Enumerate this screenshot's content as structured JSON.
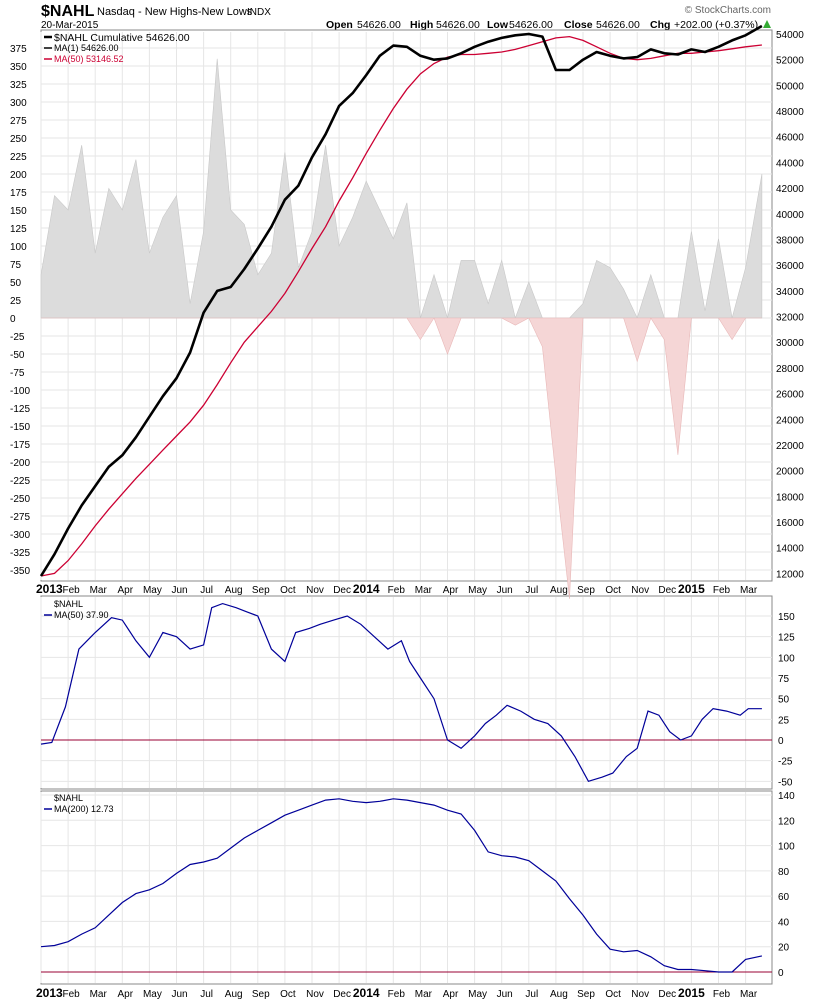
{
  "header": {
    "symbol": "$NAHL",
    "name": "Nasdaq - New Highs-New Lows",
    "exchange": "INDX",
    "date": "20-Mar-2015",
    "open_label": "Open",
    "open": "54626.00",
    "high_label": "High",
    "high": "54626.00",
    "low_label": "Low",
    "low": "54626.00",
    "close_label": "Close",
    "close": "54626.00",
    "chg_label": "Chg",
    "chg": "+202.00 (+0.37%)",
    "watermark": "© StockCharts.com"
  },
  "legend": {
    "main_line1": "$NAHL Cumulative 54626.00",
    "main_line2": "MA(1) 54626.00",
    "main_line3": "MA(50) 53146.52",
    "p2_line1": "$NAHL",
    "p2_line2": "MA(50) 37.90",
    "p3_line1": "$NAHL",
    "p3_line2": "MA(200) 12.73"
  },
  "colors": {
    "cumulative": "#000000",
    "ma50_main": "#cc0033",
    "histogram_pos": "#dcdcdc",
    "histogram_neg": "#f5d6d6",
    "ma_lower": "#000099",
    "zero_line": "#990033",
    "grid": "#e6e6e6"
  },
  "chart_data": [
    {
      "type": "line",
      "title": "$NAHL Cumulative",
      "x_labels": [
        "2013",
        "Feb",
        "Mar",
        "Apr",
        "May",
        "Jun",
        "Jul",
        "Aug",
        "Sep",
        "Oct",
        "Nov",
        "Dec",
        "2014",
        "Feb",
        "Mar",
        "Apr",
        "May",
        "Jun",
        "Jul",
        "Aug",
        "Sep",
        "Oct",
        "Nov",
        "Dec",
        "2015",
        "Feb",
        "Mar"
      ],
      "left_axis": {
        "ylim": [
          -360,
          400
        ],
        "ticks": [
          375,
          350,
          325,
          300,
          275,
          250,
          225,
          200,
          175,
          150,
          125,
          100,
          75,
          50,
          25,
          0,
          -25,
          -50,
          -75,
          -100,
          -125,
          -150,
          -175,
          -200,
          -225,
          -250,
          -275,
          -300,
          -325,
          -350
        ]
      },
      "right_axis": {
        "ylim": [
          11500,
          55500
        ],
        "ticks": [
          54000,
          52000,
          50000,
          48000,
          46000,
          44000,
          42000,
          40000,
          38000,
          36000,
          34000,
          32000,
          30000,
          28000,
          26000,
          24000,
          22000,
          20000,
          18000,
          16000,
          14000,
          12000
        ]
      },
      "series": [
        {
          "name": "$NAHL Cumulative",
          "axis": "right",
          "x": [
            0,
            0.5,
            1,
            1.5,
            2,
            2.5,
            3,
            3.5,
            4,
            4.5,
            5,
            5.5,
            6,
            6.5,
            7,
            7.5,
            8,
            8.5,
            9,
            9.5,
            10,
            10.5,
            11,
            11.5,
            12,
            12.5,
            13,
            13.5,
            14,
            14.5,
            15,
            15.5,
            16,
            16.5,
            17,
            17.5,
            18,
            18.5,
            19,
            19.5,
            20,
            20.5,
            21,
            21.5,
            22,
            22.5,
            23,
            23.5,
            24,
            24.5,
            25,
            25.5,
            26,
            26.6
          ],
          "values": [
            11800,
            13500,
            15500,
            17300,
            18800,
            20300,
            21200,
            22600,
            24200,
            25800,
            27200,
            29200,
            32300,
            34000,
            34300,
            35700,
            37300,
            39000,
            41100,
            42200,
            44400,
            46200,
            48400,
            49400,
            50800,
            52300,
            53100,
            53000,
            52300,
            52000,
            52100,
            52500,
            53000,
            53400,
            53700,
            53900,
            54000,
            53800,
            51200,
            51200,
            52000,
            52600,
            52300,
            52100,
            52200,
            52800,
            52500,
            52400,
            52800,
            52600,
            53000,
            53500,
            53900,
            54626
          ]
        },
        {
          "name": "MA(50)",
          "axis": "right",
          "x": [
            0,
            0.5,
            1,
            1.5,
            2,
            2.5,
            3,
            3.5,
            4,
            4.5,
            5,
            5.5,
            6,
            6.5,
            7,
            7.5,
            8,
            8.5,
            9,
            9.5,
            10,
            10.5,
            11,
            11.5,
            12,
            12.5,
            13,
            13.5,
            14,
            14.5,
            15,
            15.5,
            16,
            16.5,
            17,
            17.5,
            18,
            18.5,
            19,
            19.5,
            20,
            20.5,
            21,
            21.5,
            22,
            22.5,
            23,
            23.5,
            24,
            24.5,
            25,
            25.5,
            26,
            26.6
          ],
          "values": [
            11800,
            12000,
            13000,
            14300,
            15700,
            17000,
            18200,
            19400,
            20500,
            21600,
            22700,
            23800,
            25100,
            26700,
            28400,
            30000,
            31200,
            32400,
            33800,
            35500,
            37300,
            39000,
            41000,
            42800,
            44700,
            46500,
            48200,
            49700,
            50900,
            51700,
            52200,
            52400,
            52400,
            52500,
            52600,
            52800,
            53100,
            53400,
            53700,
            53800,
            53500,
            53000,
            52500,
            52100,
            52000,
            52100,
            52300,
            52500,
            52500,
            52600,
            52700,
            52850,
            53000,
            53146.52
          ]
        },
        {
          "name": "$NAHL daily",
          "axis": "left",
          "type": "area",
          "x": [
            0,
            0.5,
            1,
            1.5,
            2,
            2.5,
            3,
            3.5,
            4,
            4.5,
            5,
            5.5,
            6,
            6.5,
            7,
            7.5,
            8,
            8.5,
            9,
            9.5,
            10,
            10.5,
            11,
            11.5,
            12,
            12.5,
            13,
            13.5,
            14,
            14.5,
            15,
            15.5,
            16,
            16.5,
            17,
            17.5,
            18,
            18.5,
            19,
            19.5,
            20,
            20.5,
            21,
            21.5,
            22,
            22.5,
            23,
            23.5,
            24,
            24.5,
            25,
            25.5,
            26,
            26.6
          ],
          "values": [
            60,
            170,
            150,
            240,
            90,
            180,
            150,
            220,
            90,
            140,
            170,
            20,
            120,
            360,
            150,
            130,
            60,
            90,
            230,
            70,
            120,
            240,
            100,
            140,
            190,
            150,
            110,
            160,
            -30,
            60,
            -50,
            80,
            80,
            20,
            80,
            -10,
            50,
            -40,
            -220,
            -390,
            20,
            80,
            70,
            40,
            -60,
            60,
            -30,
            -190,
            120,
            10,
            110,
            -30,
            70,
            200
          ]
        }
      ]
    },
    {
      "type": "line",
      "title": "$NAHL MA(50)",
      "x_labels": [
        "Feb",
        "Mar",
        "Apr",
        "May",
        "Jun",
        "Jul",
        "Aug",
        "Sep",
        "Oct",
        "Nov",
        "Dec",
        "2014",
        "Feb",
        "Mar",
        "Apr",
        "May",
        "Jun",
        "Jul",
        "Aug",
        "Sep",
        "Oct",
        "Nov",
        "Dec",
        "2015",
        "Feb",
        "Mar"
      ],
      "ylim": [
        -60,
        165
      ],
      "ticks": [
        150,
        125,
        100,
        75,
        50,
        25,
        0,
        -25,
        -50
      ],
      "series": [
        {
          "name": "MA(50)",
          "x": [
            0,
            0.4,
            0.9,
            1.4,
            2,
            2.6,
            3,
            3.5,
            4,
            4.5,
            5,
            5.5,
            6,
            6.3,
            6.7,
            7.2,
            7.6,
            8,
            8.5,
            9,
            9.4,
            9.9,
            10.3,
            10.8,
            11.3,
            11.8,
            12.3,
            12.8,
            13.3,
            13.6,
            14,
            14.5,
            15,
            15.5,
            16,
            16.4,
            16.8,
            17.2,
            17.7,
            18.2,
            18.7,
            19.2,
            19.7,
            20.2,
            20.7,
            21.1,
            21.6,
            22,
            22.4,
            22.8,
            23.2,
            23.6,
            24,
            24.4,
            24.8,
            25.3,
            25.8,
            26.1,
            26.4,
            26.6
          ],
          "values": [
            -5,
            -3,
            40,
            110,
            130,
            148,
            145,
            120,
            100,
            130,
            125,
            110,
            115,
            160,
            165,
            160,
            155,
            150,
            110,
            95,
            130,
            135,
            140,
            145,
            150,
            140,
            125,
            110,
            120,
            95,
            75,
            50,
            0,
            -10,
            5,
            20,
            30,
            42,
            35,
            25,
            20,
            5,
            -20,
            -50,
            -45,
            -40,
            -20,
            -10,
            35,
            30,
            10,
            0,
            5,
            25,
            38,
            35,
            30,
            37.9,
            37.9,
            37.9
          ]
        }
      ]
    },
    {
      "type": "line",
      "title": "$NAHL MA(200)",
      "x_labels": [
        "2013",
        "Feb",
        "Mar",
        "Apr",
        "May",
        "Jun",
        "Jul",
        "Aug",
        "Sep",
        "Oct",
        "Nov",
        "Dec",
        "2014",
        "Feb",
        "Mar",
        "Apr",
        "May",
        "Jun",
        "Jul",
        "Aug",
        "Sep",
        "Oct",
        "Nov",
        "Dec",
        "2015",
        "Feb",
        "Mar"
      ],
      "ylim": [
        -5,
        145
      ],
      "ticks": [
        140,
        120,
        100,
        80,
        60,
        40,
        20,
        0
      ],
      "series": [
        {
          "name": "MA(200)",
          "x": [
            0,
            0.5,
            1,
            1.5,
            2,
            2.5,
            3,
            3.5,
            4,
            4.5,
            5,
            5.5,
            6,
            6.5,
            7,
            7.5,
            8,
            8.5,
            9,
            9.5,
            10,
            10.5,
            11,
            11.5,
            12,
            12.5,
            13,
            13.5,
            14,
            14.5,
            15,
            15.5,
            16,
            16.5,
            17,
            17.5,
            18,
            18.5,
            19,
            19.5,
            20,
            20.5,
            21,
            21.5,
            22,
            22.5,
            23,
            23.5,
            24,
            24.5,
            25,
            25.5,
            26,
            26.6
          ],
          "values": [
            20,
            21,
            24,
            30,
            35,
            45,
            55,
            62,
            65,
            70,
            78,
            85,
            87,
            90,
            98,
            106,
            112,
            118,
            124,
            128,
            132,
            136,
            137,
            135,
            134,
            135,
            137,
            136,
            134,
            132,
            128,
            125,
            112,
            95,
            92,
            91,
            88,
            80,
            72,
            58,
            45,
            30,
            18,
            16,
            17,
            12,
            5,
            2,
            2,
            1,
            0,
            0,
            10,
            12.73
          ]
        }
      ]
    }
  ]
}
